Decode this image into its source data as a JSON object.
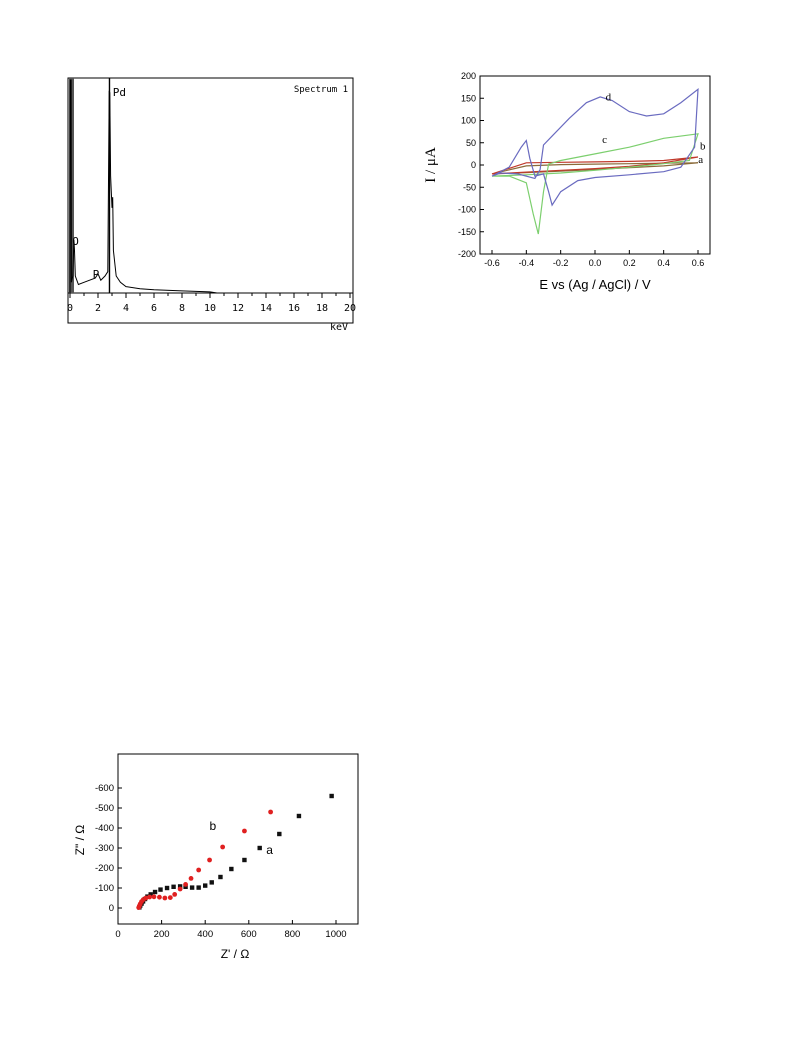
{
  "charts": {
    "eds": {
      "type": "line",
      "title": "Spectrum 1",
      "xlabel": "keV",
      "xlim": [
        0,
        20
      ],
      "xticks": [
        0,
        2,
        4,
        6,
        8,
        10,
        12,
        14,
        16,
        18,
        20
      ],
      "peak_labels": [
        {
          "text": "Pd",
          "x": 2.84
        },
        {
          "text": "O",
          "x": 0.3
        },
        {
          "text": "P",
          "x": 1.9
        }
      ]
    },
    "cv": {
      "type": "line",
      "xlabel": "E vs (Ag / AgCl) / V",
      "ylabel": "I / μA",
      "xlim": [
        -0.6,
        0.6
      ],
      "ylim": [
        -200,
        200
      ],
      "xticks": [
        "-0.6",
        "-0.4",
        "-0.2",
        "0.0",
        "0.2",
        "0.4",
        "0.6"
      ],
      "yticks": [
        "200",
        "150",
        "100",
        "50",
        "0",
        "-50",
        "-100",
        "-150",
        "-200"
      ],
      "series": [
        {
          "name": "a",
          "color": "#8b6b3a",
          "forward": [
            [
              -0.6,
              -20
            ],
            [
              -0.4,
              -17
            ],
            [
              -0.2,
              -14
            ],
            [
              0.0,
              -10
            ],
            [
              0.2,
              -6
            ],
            [
              0.4,
              -2
            ],
            [
              0.6,
              5
            ]
          ],
          "reverse": [
            [
              0.6,
              5
            ],
            [
              0.4,
              4
            ],
            [
              0.2,
              3
            ],
            [
              0.0,
              2
            ],
            [
              -0.2,
              1
            ],
            [
              -0.4,
              -2
            ],
            [
              -0.6,
              -20
            ]
          ]
        },
        {
          "name": "b",
          "color": "#c0392b",
          "forward": [
            [
              -0.6,
              -20
            ],
            [
              -0.4,
              -16
            ],
            [
              -0.2,
              -12
            ],
            [
              0.0,
              -8
            ],
            [
              0.2,
              -3
            ],
            [
              0.4,
              5
            ],
            [
              0.6,
              18
            ]
          ],
          "reverse": [
            [
              0.6,
              18
            ],
            [
              0.4,
              10
            ],
            [
              0.2,
              8
            ],
            [
              0.0,
              7
            ],
            [
              -0.2,
              6
            ],
            [
              -0.4,
              5
            ],
            [
              -0.6,
              -20
            ]
          ]
        },
        {
          "name": "c",
          "color": "#7ccf6e",
          "forward": [
            [
              -0.6,
              -25
            ],
            [
              -0.4,
              -22
            ],
            [
              -0.2,
              -18
            ],
            [
              0.0,
              -12
            ],
            [
              0.2,
              -5
            ],
            [
              0.4,
              3
            ],
            [
              0.55,
              10
            ],
            [
              0.6,
              70
            ]
          ],
          "reverse": [
            [
              0.6,
              70
            ],
            [
              0.4,
              60
            ],
            [
              0.2,
              40
            ],
            [
              0.0,
              25
            ],
            [
              -0.2,
              10
            ],
            [
              -0.27,
              2
            ],
            [
              -0.3,
              -60
            ],
            [
              -0.33,
              -155
            ],
            [
              -0.36,
              -110
            ],
            [
              -0.4,
              -40
            ],
            [
              -0.5,
              -25
            ],
            [
              -0.6,
              -25
            ]
          ]
        },
        {
          "name": "d",
          "color": "#6a6bc0",
          "forward": [
            [
              -0.6,
              -25
            ],
            [
              -0.5,
              -5
            ],
            [
              -0.43,
              40
            ],
            [
              -0.4,
              55
            ],
            [
              -0.38,
              15
            ],
            [
              -0.35,
              -25
            ],
            [
              -0.3,
              -20
            ],
            [
              -0.27,
              -60
            ],
            [
              -0.25,
              -90
            ],
            [
              -0.2,
              -60
            ],
            [
              -0.1,
              -35
            ],
            [
              0.0,
              -28
            ],
            [
              0.2,
              -22
            ],
            [
              0.4,
              -15
            ],
            [
              0.5,
              -5
            ],
            [
              0.58,
              40
            ],
            [
              0.6,
              170
            ]
          ],
          "reverse": [
            [
              0.6,
              170
            ],
            [
              0.5,
              140
            ],
            [
              0.4,
              115
            ],
            [
              0.3,
              110
            ],
            [
              0.2,
              120
            ],
            [
              0.1,
              145
            ],
            [
              0.03,
              153
            ],
            [
              -0.05,
              140
            ],
            [
              -0.15,
              105
            ],
            [
              -0.25,
              65
            ],
            [
              -0.3,
              45
            ],
            [
              -0.32,
              -10
            ],
            [
              -0.35,
              -30
            ],
            [
              -0.45,
              -20
            ],
            [
              -0.55,
              -18
            ],
            [
              -0.6,
              -25
            ]
          ]
        }
      ]
    },
    "eis": {
      "type": "scatter",
      "xlabel": "Z' / Ω",
      "ylabel": "Z\" / Ω",
      "xlim": [
        0,
        1100
      ],
      "ylim": [
        0,
        -650
      ],
      "xticks": [
        "0",
        "200",
        "400",
        "600",
        "800",
        "1000"
      ],
      "yticks": [
        "-600",
        "-500",
        "-400",
        "-300",
        "-200",
        "-100",
        "0"
      ],
      "series": [
        {
          "name": "a",
          "color": "#111111",
          "marker": "square",
          "points": [
            [
              98,
              -3
            ],
            [
              102,
              -12
            ],
            [
              108,
              -22
            ],
            [
              115,
              -33
            ],
            [
              124,
              -45
            ],
            [
              135,
              -57
            ],
            [
              150,
              -68
            ],
            [
              170,
              -80
            ],
            [
              195,
              -92
            ],
            [
              225,
              -100
            ],
            [
              255,
              -106
            ],
            [
              285,
              -108
            ],
            [
              310,
              -106
            ],
            [
              340,
              -102
            ],
            [
              370,
              -102
            ],
            [
              400,
              -112
            ],
            [
              430,
              -128
            ],
            [
              470,
              -155
            ],
            [
              520,
              -195
            ],
            [
              580,
              -240
            ],
            [
              650,
              -300
            ],
            [
              740,
              -370
            ],
            [
              830,
              -460
            ],
            [
              980,
              -560
            ]
          ]
        },
        {
          "name": "b",
          "color": "#e02020",
          "marker": "circle",
          "points": [
            [
              95,
              -2
            ],
            [
              98,
              -10
            ],
            [
              102,
              -20
            ],
            [
              108,
              -32
            ],
            [
              116,
              -42
            ],
            [
              128,
              -50
            ],
            [
              145,
              -55
            ],
            [
              165,
              -56
            ],
            [
              190,
              -54
            ],
            [
              215,
              -50
            ],
            [
              240,
              -52
            ],
            [
              260,
              -68
            ],
            [
              285,
              -95
            ],
            [
              310,
              -118
            ],
            [
              335,
              -148
            ],
            [
              370,
              -190
            ],
            [
              420,
              -240
            ],
            [
              480,
              -305
            ],
            [
              580,
              -385
            ],
            [
              700,
              -480
            ]
          ]
        }
      ]
    }
  }
}
